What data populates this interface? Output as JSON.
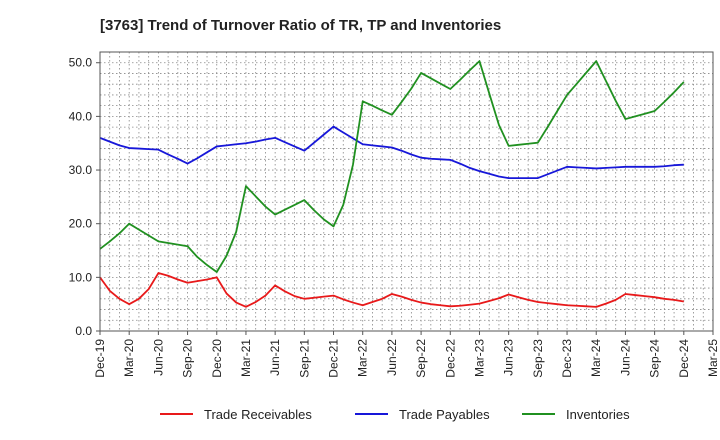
{
  "chart_data": {
    "type": "line",
    "title": "[3763]  Trend of Turnover Ratio of TR, TP and Inventories",
    "xlabel": "",
    "ylabel": "",
    "ylim": [
      0,
      52
    ],
    "yticks": [
      "0.0",
      "10.0",
      "20.0",
      "30.0",
      "40.0",
      "50.0"
    ],
    "ytick_values": [
      0,
      10,
      20,
      30,
      40,
      50
    ],
    "xticks": [
      "Dec-19",
      "Mar-20",
      "Jun-20",
      "Sep-20",
      "Dec-20",
      "Mar-21",
      "Jun-21",
      "Sep-21",
      "Dec-21",
      "Mar-22",
      "Jun-22",
      "Sep-22",
      "Dec-22",
      "Mar-23",
      "Jun-23",
      "Sep-23",
      "Dec-23",
      "Mar-24",
      "Jun-24",
      "Sep-24",
      "Dec-24",
      "Mar-25"
    ],
    "x": [
      "Dec-19",
      "Jan-20",
      "Feb-20",
      "Mar-20",
      "Apr-20",
      "May-20",
      "Jun-20",
      "Jul-20",
      "Aug-20",
      "Sep-20",
      "Oct-20",
      "Nov-20",
      "Dec-20",
      "Jan-21",
      "Feb-21",
      "Mar-21",
      "Apr-21",
      "May-21",
      "Jun-21",
      "Jul-21",
      "Aug-21",
      "Sep-21",
      "Oct-21",
      "Nov-21",
      "Dec-21",
      "Jan-22",
      "Feb-22",
      "Mar-22",
      "Apr-22",
      "May-22",
      "Jun-22",
      "Jul-22",
      "Aug-22",
      "Sep-22",
      "Oct-22",
      "Nov-22",
      "Dec-22",
      "Jan-23",
      "Feb-23",
      "Mar-23",
      "Apr-23",
      "May-23",
      "Jun-23",
      "Jul-23",
      "Aug-23",
      "Sep-23",
      "Oct-23",
      "Nov-23",
      "Dec-23",
      "Jan-24",
      "Feb-24",
      "Mar-24",
      "Apr-24",
      "May-24",
      "Jun-24",
      "Jul-24",
      "Aug-24",
      "Sep-24",
      "Oct-24",
      "Nov-24",
      "Dec-24"
    ],
    "series": [
      {
        "name": "Trade Receivables",
        "color": "#e8191a",
        "values": [
          10.0,
          7.5,
          6.0,
          5.0,
          6.0,
          7.8,
          10.8,
          10.3,
          9.6,
          9.0,
          9.3,
          9.6,
          10.0,
          7.0,
          5.3,
          4.5,
          5.4,
          6.6,
          8.5,
          7.4,
          6.5,
          6.0,
          6.2,
          6.4,
          6.6,
          5.9,
          5.3,
          4.8,
          5.4,
          6.0,
          6.9,
          6.4,
          5.8,
          5.3,
          5.0,
          4.8,
          4.6,
          4.7,
          4.9,
          5.1,
          5.6,
          6.1,
          6.8,
          6.3,
          5.8,
          5.4,
          5.2,
          5.0,
          4.8,
          4.7,
          4.6,
          4.5,
          5.1,
          5.8,
          6.9,
          6.7,
          6.5,
          6.3,
          6.0,
          5.8,
          5.5
        ]
      },
      {
        "name": "Trade Payables",
        "color": "#1717d9",
        "values": [
          36.0,
          35.3,
          34.6,
          34.1,
          34.0,
          33.9,
          33.8,
          32.9,
          32.1,
          31.2,
          32.2,
          33.3,
          34.4,
          34.6,
          34.8,
          35.0,
          35.3,
          35.7,
          36.0,
          35.2,
          34.4,
          33.6,
          35.1,
          36.6,
          38.1,
          37.0,
          35.9,
          34.8,
          34.6,
          34.4,
          34.2,
          33.6,
          32.9,
          32.3,
          32.1,
          32.0,
          31.9,
          31.2,
          30.4,
          29.8,
          29.3,
          28.8,
          28.5,
          28.5,
          28.5,
          28.5,
          29.2,
          29.9,
          30.6,
          30.5,
          30.4,
          30.3,
          30.4,
          30.5,
          30.6,
          30.6,
          30.6,
          30.6,
          30.7,
          30.9,
          31.0
        ]
      },
      {
        "name": "Inventories",
        "color": "#209020",
        "values": [
          15.3,
          16.7,
          18.2,
          20.0,
          18.9,
          17.8,
          16.7,
          16.4,
          16.1,
          15.8,
          13.8,
          12.3,
          11.0,
          14.0,
          18.5,
          27.0,
          25.1,
          23.2,
          21.7,
          22.6,
          23.5,
          24.4,
          22.5,
          20.8,
          19.5,
          23.5,
          31.0,
          42.8,
          42.0,
          41.1,
          40.3,
          42.7,
          45.2,
          48.1,
          47.1,
          46.1,
          45.1,
          46.8,
          48.6,
          50.3,
          44.3,
          38.4,
          34.5,
          34.7,
          34.9,
          35.1,
          38.0,
          41.0,
          44.0,
          46.1,
          48.2,
          50.3,
          46.6,
          42.9,
          39.5,
          40.0,
          40.5,
          41.0,
          42.7,
          44.5,
          46.4
        ]
      }
    ],
    "grid": true,
    "legend": "bottom"
  }
}
